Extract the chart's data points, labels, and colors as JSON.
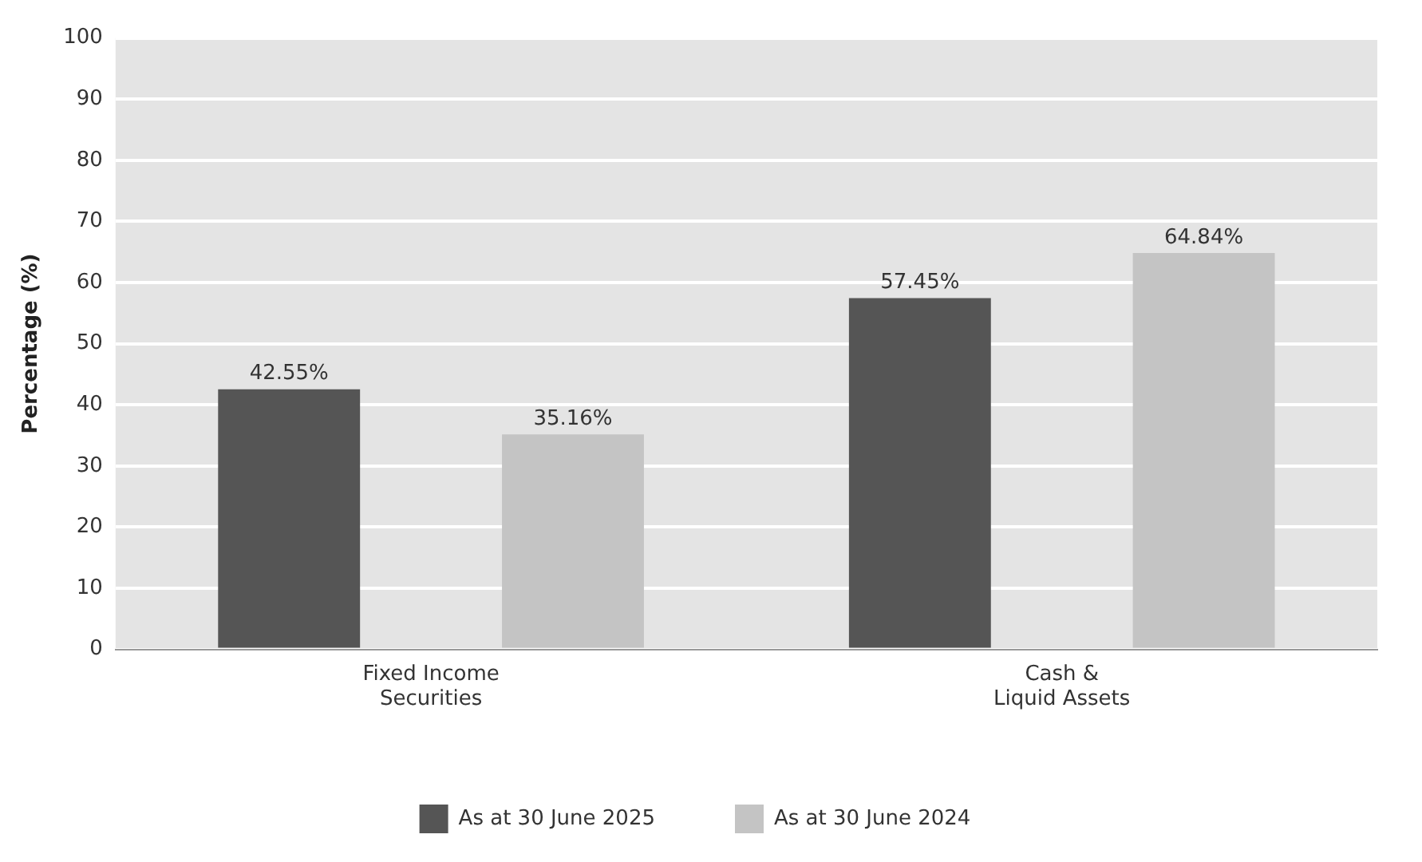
{
  "chart_data": {
    "type": "bar",
    "ylabel": "Percentage (%)",
    "categories": [
      "Fixed Income\nSecurities",
      "Cash &\nLiquid Assets"
    ],
    "series": [
      {
        "name": "As at 30 June 2025",
        "color": "#555555",
        "values": [
          42.55,
          57.45
        ],
        "value_labels": [
          "42.55%",
          "57.45%"
        ]
      },
      {
        "name": "As at 30 June 2024",
        "color": "#c4c4c4",
        "values": [
          35.16,
          64.84
        ],
        "value_labels": [
          "35.16%",
          "64.84%"
        ]
      }
    ],
    "ylim": [
      0,
      100
    ],
    "yticks": [
      0,
      10,
      20,
      30,
      40,
      50,
      60,
      70,
      80,
      90,
      100
    ],
    "grid": "y",
    "legend": "bottom"
  }
}
